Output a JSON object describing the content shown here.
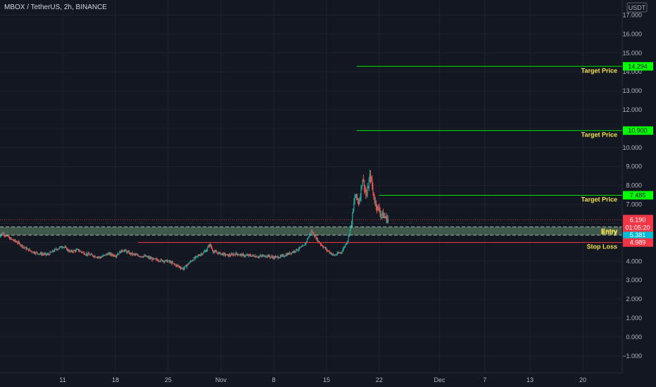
{
  "header": {
    "symbol_title": "MBOX / TetherUS, 2h, BINANCE"
  },
  "chart_data": {
    "type": "candlestick",
    "currency_label": "USDT",
    "y_ticks": [
      "17.000",
      "16.000",
      "15.000",
      "14.000",
      "13.000",
      "12.000",
      "11.000",
      "10.000",
      "9.000",
      "8.000",
      "7.000",
      "6.000",
      "5.000",
      "4.000",
      "3.000",
      "2.000",
      "1.000",
      "0.000",
      "−1.000"
    ],
    "y_tick_values": [
      17,
      16,
      15,
      14,
      13,
      12,
      11,
      10,
      9,
      8,
      7,
      6,
      5,
      4,
      3,
      2,
      1,
      0,
      -1
    ],
    "ylim": [
      -1.6,
      17.5
    ],
    "x_ticks": [
      {
        "label": "11",
        "day": 11
      },
      {
        "label": "18",
        "day": 18
      },
      {
        "label": "25",
        "day": 25
      },
      {
        "label": "Nov",
        "day": 32
      },
      {
        "label": "8",
        "day": 39
      },
      {
        "label": "15",
        "day": 46
      },
      {
        "label": "22",
        "day": 53
      },
      {
        "label": "Dec",
        "day": 61
      },
      {
        "label": "7",
        "day": 67
      },
      {
        "label": "13",
        "day": 73
      },
      {
        "label": "20",
        "day": 80
      }
    ],
    "price_path": [
      [
        2.5,
        5.3
      ],
      [
        3,
        5.5
      ],
      [
        4,
        5.2
      ],
      [
        5,
        5.0
      ],
      [
        6,
        4.7
      ],
      [
        7,
        4.5
      ],
      [
        8,
        4.4
      ],
      [
        9,
        4.35
      ],
      [
        10,
        4.6
      ],
      [
        11,
        4.8
      ],
      [
        12,
        4.5
      ],
      [
        13,
        4.6
      ],
      [
        14,
        4.4
      ],
      [
        15,
        4.3
      ],
      [
        16,
        4.2
      ],
      [
        17,
        4.4
      ],
      [
        18,
        4.3
      ],
      [
        19,
        4.6
      ],
      [
        20,
        4.4
      ],
      [
        21,
        4.3
      ],
      [
        22,
        4.25
      ],
      [
        23,
        4.1
      ],
      [
        24,
        4.05
      ],
      [
        25,
        4.0
      ],
      [
        26,
        3.8
      ],
      [
        27,
        3.6
      ],
      [
        28,
        4.0
      ],
      [
        29,
        4.3
      ],
      [
        30,
        4.55
      ],
      [
        30.5,
        4.9
      ],
      [
        31,
        4.5
      ],
      [
        32,
        4.4
      ],
      [
        33,
        4.3
      ],
      [
        34,
        4.4
      ],
      [
        35,
        4.3
      ],
      [
        36,
        4.3
      ],
      [
        37,
        4.25
      ],
      [
        38,
        4.3
      ],
      [
        39,
        4.2
      ],
      [
        40,
        4.25
      ],
      [
        41,
        4.4
      ],
      [
        42,
        4.6
      ],
      [
        43,
        4.8
      ],
      [
        44,
        5.6
      ],
      [
        45,
        5.0
      ],
      [
        46,
        4.6
      ],
      [
        47,
        4.3
      ],
      [
        48,
        4.5
      ],
      [
        48.8,
        5.1
      ],
      [
        49.3,
        6.0
      ],
      [
        49.8,
        7.5
      ],
      [
        50.3,
        7.1
      ],
      [
        50.8,
        8.4
      ],
      [
        51.3,
        7.4
      ],
      [
        51.8,
        8.6
      ],
      [
        52.3,
        7.3
      ],
      [
        52.8,
        6.8
      ],
      [
        53.3,
        6.5
      ],
      [
        53.8,
        6.3
      ],
      [
        54.2,
        6.19
      ]
    ],
    "current_price": {
      "value": 6.19,
      "label": "6.190",
      "countdown": "01:05:20",
      "color": "#f23645"
    },
    "levels": [
      {
        "name": "Target Price",
        "value": 14.294,
        "label": "14.294",
        "type": "target",
        "color": "#00ff00",
        "start_day": 50
      },
      {
        "name": "Target Price",
        "value": 10.9,
        "label": "10.900",
        "type": "target",
        "color": "#00ff00",
        "start_day": 50
      },
      {
        "name": "Target Price",
        "value": 7.485,
        "label": "7.485",
        "type": "target",
        "color": "#00ff00",
        "start_day": 53
      },
      {
        "name": "Entry",
        "value": 5.816,
        "label": "5.816",
        "type": "entry",
        "color": "#00bcd4"
      },
      {
        "name": "Entry",
        "value": 5.381,
        "label": "5.381",
        "type": "entry",
        "color": "#00bcd4"
      },
      {
        "name": "Stop Loss",
        "value": 4.989,
        "label": "4.989",
        "type": "stop",
        "color": "#f23645",
        "start_day": 21
      }
    ],
    "entry_zone": {
      "low": 5.381,
      "high": 5.816
    },
    "colors": {
      "up": "#26a69a",
      "down": "#ef5350",
      "background": "#131722",
      "grid": "#1e222d",
      "axis_text": "#b2b5be",
      "zone": "#4f6f5a"
    }
  }
}
